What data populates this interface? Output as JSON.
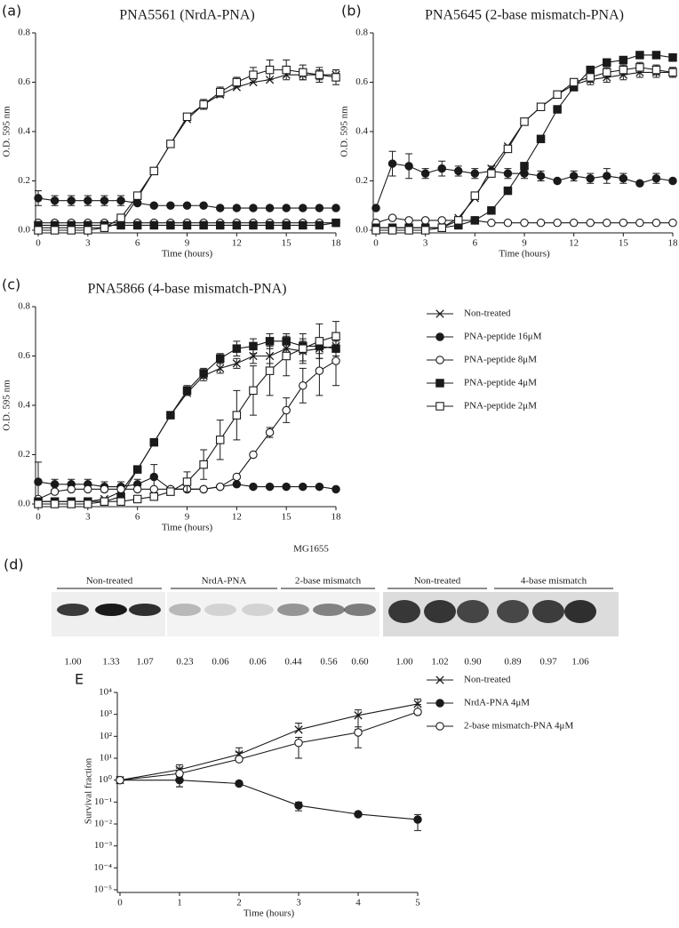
{
  "chart_data": [
    {
      "type": "line",
      "panel_label": "(a)",
      "title": "PNA5561 (NrdA-PNA)",
      "x_label": "Time (hours)",
      "y_label": "O.D. 595 nm",
      "color": "#1a1a1a",
      "x": [
        0,
        1,
        2,
        3,
        4,
        5,
        6,
        7,
        8,
        9,
        10,
        11,
        12,
        13,
        14,
        15,
        16,
        17,
        18
      ],
      "xlim": [
        0,
        18
      ],
      "xticks": [
        0,
        3,
        6,
        9,
        12,
        15,
        18
      ],
      "ylim": [
        0,
        0.8
      ],
      "yticks": [
        {
          "value": 0,
          "label": "0.0"
        },
        0.2,
        0.4,
        0.6,
        0.8
      ],
      "series": [
        {
          "marker": "x",
          "values": [
            0.01,
            0.01,
            0.01,
            0.01,
            0.01,
            0.03,
            0.13,
            0.24,
            0.35,
            0.45,
            0.51,
            0.55,
            0.58,
            0.6,
            0.61,
            0.63,
            0.63,
            0.63,
            0.63
          ],
          "errors": [
            0,
            0,
            0,
            0,
            0,
            0,
            0,
            0,
            0,
            0,
            0,
            0,
            0,
            0,
            0,
            0,
            0.02,
            0.02,
            0.02
          ]
        },
        {
          "marker": "circle",
          "values": [
            0.13,
            0.12,
            0.12,
            0.12,
            0.12,
            0.12,
            0.11,
            0.1,
            0.1,
            0.1,
            0.1,
            0.09,
            0.09,
            0.09,
            0.09,
            0.09,
            0.09,
            0.09,
            0.09
          ],
          "errors": [
            0.03,
            0.02,
            0.02,
            0.02,
            0.02,
            0.02,
            0,
            0,
            0,
            0,
            0,
            0,
            0,
            0,
            0,
            0,
            0,
            0,
            0
          ]
        },
        {
          "marker": "circle-open",
          "values": [
            0.03,
            0.03,
            0.03,
            0.03,
            0.03,
            0.03,
            0.03,
            0.03,
            0.03,
            0.03,
            0.03,
            0.03,
            0.03,
            0.03,
            0.03,
            0.03,
            0.03,
            0.03,
            0.03
          ],
          "errors": [
            0,
            0,
            0,
            0,
            0,
            0,
            0,
            0,
            0,
            0,
            0,
            0,
            0,
            0,
            0,
            0,
            0,
            0,
            0
          ]
        },
        {
          "marker": "square",
          "values": [
            0.02,
            0.02,
            0.02,
            0.02,
            0.02,
            0.02,
            0.02,
            0.02,
            0.02,
            0.02,
            0.02,
            0.02,
            0.02,
            0.02,
            0.02,
            0.02,
            0.02,
            0.02,
            0.03
          ],
          "errors": [
            0,
            0,
            0,
            0,
            0,
            0,
            0,
            0,
            0,
            0,
            0,
            0,
            0,
            0,
            0,
            0,
            0,
            0,
            0.01
          ]
        },
        {
          "marker": "square-open",
          "values": [
            0,
            0,
            0,
            0,
            0.01,
            0.05,
            0.14,
            0.24,
            0.35,
            0.46,
            0.51,
            0.56,
            0.6,
            0.63,
            0.65,
            0.65,
            0.64,
            0.63,
            0.62
          ],
          "errors": [
            0,
            0,
            0,
            0,
            0,
            0,
            0,
            0,
            0,
            0,
            0.02,
            0.02,
            0.02,
            0.03,
            0.04,
            0.04,
            0.03,
            0.03,
            0.03
          ]
        }
      ]
    },
    {
      "type": "line",
      "panel_label": "(b)",
      "title": "PNA5645 (2-base mismatch-PNA)",
      "x_label": "Time (hours)",
      "y_label": "O.D. 595 nm",
      "color": "#1a1a1a",
      "x": [
        0,
        1,
        2,
        3,
        4,
        5,
        6,
        7,
        8,
        9,
        10,
        11,
        12,
        13,
        14,
        15,
        16,
        17,
        18
      ],
      "xlim": [
        0,
        18
      ],
      "xticks": [
        0,
        3,
        6,
        9,
        12,
        15,
        18
      ],
      "ylim": [
        0,
        0.8
      ],
      "yticks": [
        {
          "value": 0,
          "label": "0.0"
        },
        0.2,
        0.4,
        0.6,
        0.8
      ],
      "series": [
        {
          "marker": "x",
          "values": [
            0.01,
            0.01,
            0.01,
            0.01,
            0.01,
            0.05,
            0.13,
            0.25,
            0.34,
            0.44,
            0.5,
            0.55,
            0.59,
            0.61,
            0.62,
            0.63,
            0.64,
            0.64,
            0.64
          ],
          "errors": [
            0,
            0,
            0,
            0,
            0,
            0,
            0,
            0,
            0,
            0,
            0,
            0,
            0,
            0.02,
            0.02,
            0.02,
            0.02,
            0.02,
            0.02
          ]
        },
        {
          "marker": "circle",
          "values": [
            0.09,
            0.27,
            0.26,
            0.23,
            0.25,
            0.24,
            0.23,
            0.24,
            0.23,
            0.23,
            0.22,
            0.2,
            0.22,
            0.21,
            0.22,
            0.21,
            0.19,
            0.21,
            0.2
          ],
          "errors": [
            0,
            0.05,
            0.05,
            0.02,
            0.03,
            0.02,
            0.02,
            0.02,
            0.02,
            0.02,
            0.02,
            0,
            0.02,
            0.02,
            0.03,
            0.02,
            0,
            0.02,
            0
          ]
        },
        {
          "marker": "circle-open",
          "values": [
            0.03,
            0.05,
            0.04,
            0.04,
            0.04,
            0.04,
            0.04,
            0.03,
            0.03,
            0.03,
            0.03,
            0.03,
            0.03,
            0.03,
            0.03,
            0.03,
            0.03,
            0.03,
            0.03
          ],
          "errors": [
            0,
            0,
            0,
            0,
            0,
            0,
            0,
            0,
            0,
            0,
            0,
            0,
            0,
            0,
            0,
            0,
            0,
            0,
            0
          ]
        },
        {
          "marker": "square",
          "values": [
            0.01,
            0.01,
            0.01,
            0.01,
            0.01,
            0.02,
            0.04,
            0.08,
            0.16,
            0.26,
            0.37,
            0.49,
            0.58,
            0.65,
            0.68,
            0.69,
            0.71,
            0.71,
            0.7
          ],
          "errors": [
            0,
            0,
            0,
            0,
            0,
            0,
            0,
            0,
            0,
            0,
            0,
            0,
            0,
            0,
            0,
            0,
            0,
            0,
            0
          ]
        },
        {
          "marker": "square-open",
          "values": [
            0,
            0,
            0,
            0,
            0.01,
            0.04,
            0.14,
            0.23,
            0.33,
            0.44,
            0.5,
            0.55,
            0.6,
            0.62,
            0.64,
            0.65,
            0.66,
            0.65,
            0.64
          ],
          "errors": [
            0,
            0,
            0,
            0,
            0,
            0,
            0,
            0,
            0,
            0,
            0,
            0,
            0,
            0.02,
            0.02,
            0.02,
            0.02,
            0.02,
            0.02
          ]
        }
      ]
    },
    {
      "type": "line",
      "panel_label": "(c)",
      "title": "PNA5866 (4-base mismatch-PNA)",
      "x_label": "Time (hours)",
      "y_label": "O.D. 595 nm",
      "color": "#1a1a1a",
      "legend": "right",
      "x": [
        0,
        1,
        2,
        3,
        4,
        5,
        6,
        7,
        8,
        9,
        10,
        11,
        12,
        13,
        14,
        15,
        16,
        17,
        18
      ],
      "xlim": [
        0,
        18
      ],
      "xticks": [
        0,
        3,
        6,
        9,
        12,
        15,
        18
      ],
      "ylim": [
        0,
        0.8
      ],
      "yticks": [
        {
          "value": 0,
          "label": "0.0"
        },
        0.2,
        0.4,
        0.6,
        0.8
      ],
      "series": [
        {
          "name": "Non-treated",
          "marker": "x",
          "values": [
            0.01,
            0.01,
            0.01,
            0.01,
            0.02,
            0.05,
            0.14,
            0.25,
            0.36,
            0.45,
            0.52,
            0.55,
            0.57,
            0.6,
            0.6,
            0.63,
            0.62,
            0.63,
            0.64
          ],
          "errors": [
            0,
            0,
            0,
            0,
            0,
            0,
            0,
            0,
            0,
            0,
            0.02,
            0.02,
            0.02,
            0.03,
            0.03,
            0.04,
            0.04,
            0.04,
            0.04
          ]
        },
        {
          "name": "PNA-peptide 16μM",
          "marker": "circle",
          "values": [
            0.09,
            0.08,
            0.08,
            0.08,
            0.07,
            0.07,
            0.08,
            0.11,
            0.06,
            0.06,
            0.06,
            0.07,
            0.08,
            0.07,
            0.07,
            0.07,
            0.07,
            0.07,
            0.06
          ],
          "errors": [
            0.08,
            0.02,
            0.02,
            0.02,
            0.02,
            0.02,
            0.02,
            0.05,
            0,
            0,
            0,
            0,
            0,
            0,
            0,
            0,
            0,
            0,
            0
          ]
        },
        {
          "name": "PNA-peptide 8μM",
          "marker": "circle-open",
          "values": [
            0.02,
            0.05,
            0.06,
            0.06,
            0.06,
            0.06,
            0.06,
            0.06,
            0.06,
            0.06,
            0.06,
            0.07,
            0.11,
            0.2,
            0.29,
            0.38,
            0.48,
            0.54,
            0.58
          ],
          "errors": [
            0,
            0,
            0,
            0,
            0,
            0,
            0,
            0,
            0,
            0,
            0,
            0,
            0,
            0,
            0.02,
            0.05,
            0.07,
            0.1,
            0.1
          ]
        },
        {
          "name": "PNA-peptide 4μM",
          "marker": "square",
          "values": [
            0.01,
            0.01,
            0.01,
            0.01,
            0.01,
            0.03,
            0.14,
            0.25,
            0.36,
            0.46,
            0.53,
            0.59,
            0.63,
            0.64,
            0.66,
            0.66,
            0.64,
            0.64,
            0.63
          ],
          "errors": [
            0,
            0,
            0,
            0,
            0,
            0,
            0,
            0,
            0,
            0.02,
            0.02,
            0.02,
            0.03,
            0.03,
            0.03,
            0.03,
            0.03,
            0.03,
            0.03
          ]
        },
        {
          "name": "PNA-peptide 2μM",
          "marker": "square-open",
          "values": [
            0,
            0,
            0,
            0,
            0.01,
            0.01,
            0.02,
            0.03,
            0.05,
            0.09,
            0.16,
            0.26,
            0.36,
            0.46,
            0.54,
            0.6,
            0.63,
            0.66,
            0.68
          ],
          "errors": [
            0,
            0,
            0,
            0,
            0,
            0,
            0,
            0,
            0,
            0.04,
            0.06,
            0.08,
            0.1,
            0.1,
            0.1,
            0.08,
            0.06,
            0.07,
            0.06
          ]
        }
      ]
    },
    {
      "type": "line",
      "panel_label": "E",
      "x_label": "Time (hours)",
      "y_label": "Survival fraction",
      "color": "#1a1a1a",
      "legend": "right",
      "log_scale": true,
      "x": [
        0,
        1,
        2,
        3,
        4,
        5
      ],
      "xlim": [
        0,
        5
      ],
      "xticks": [
        0,
        1,
        2,
        3,
        4,
        5
      ],
      "ylim": [
        1e-05,
        10000
      ],
      "yticks": [
        {
          "value": 1e-05,
          "label": "10⁻⁵"
        },
        {
          "value": 0.0001,
          "label": "10⁻⁴"
        },
        {
          "value": 0.001,
          "label": "10⁻³"
        },
        {
          "value": 0.01,
          "label": "10⁻²"
        },
        {
          "value": 0.1,
          "label": "10⁻¹"
        },
        {
          "value": 1,
          "label": "10⁰"
        },
        {
          "value": 10,
          "label": "10¹"
        },
        {
          "value": 100,
          "label": "10²"
        },
        {
          "value": 1000,
          "label": "10³"
        },
        {
          "value": 10000,
          "label": "10⁴"
        }
      ],
      "series": [
        {
          "name": "Non-treated",
          "marker": "x",
          "values": [
            1,
            3,
            15,
            200,
            900,
            3000
          ],
          "errors": [
            0,
            2,
            15,
            200,
            700,
            2000
          ]
        },
        {
          "name": "NrdA-PNA 4μM",
          "marker": "circle",
          "values": [
            1,
            1,
            0.7,
            0.07,
            0.028,
            0.016
          ],
          "errors": [
            0,
            0.5,
            0,
            0.03,
            0,
            0.011
          ]
        },
        {
          "name": "2-base mismatch-PNA 4μM",
          "marker": "circle-open",
          "values": [
            1,
            2,
            9,
            50,
            150,
            1300
          ],
          "errors": [
            0,
            1.5,
            10,
            40,
            120,
            1500
          ]
        }
      ]
    }
  ],
  "blot": {
    "panel_label": "(d)",
    "title": "MG1655",
    "groups": [
      "Non-treated",
      "NrdA-PNA",
      "2-base mismatch",
      "Non-treated",
      "4-base mismatch"
    ],
    "values": [
      1.0,
      1.33,
      1.07,
      0.23,
      0.06,
      0.06,
      0.44,
      0.56,
      0.6,
      1.0,
      1.02,
      0.9,
      0.89,
      0.97,
      1.06
    ],
    "value_labels": [
      "1.00",
      "1.33",
      "1.07",
      "0.23",
      "0.06",
      "0.06",
      "0.44",
      "0.56",
      "0.60",
      "1.00",
      "1.02",
      "0.90",
      "0.89",
      "0.97",
      "1.06"
    ]
  }
}
